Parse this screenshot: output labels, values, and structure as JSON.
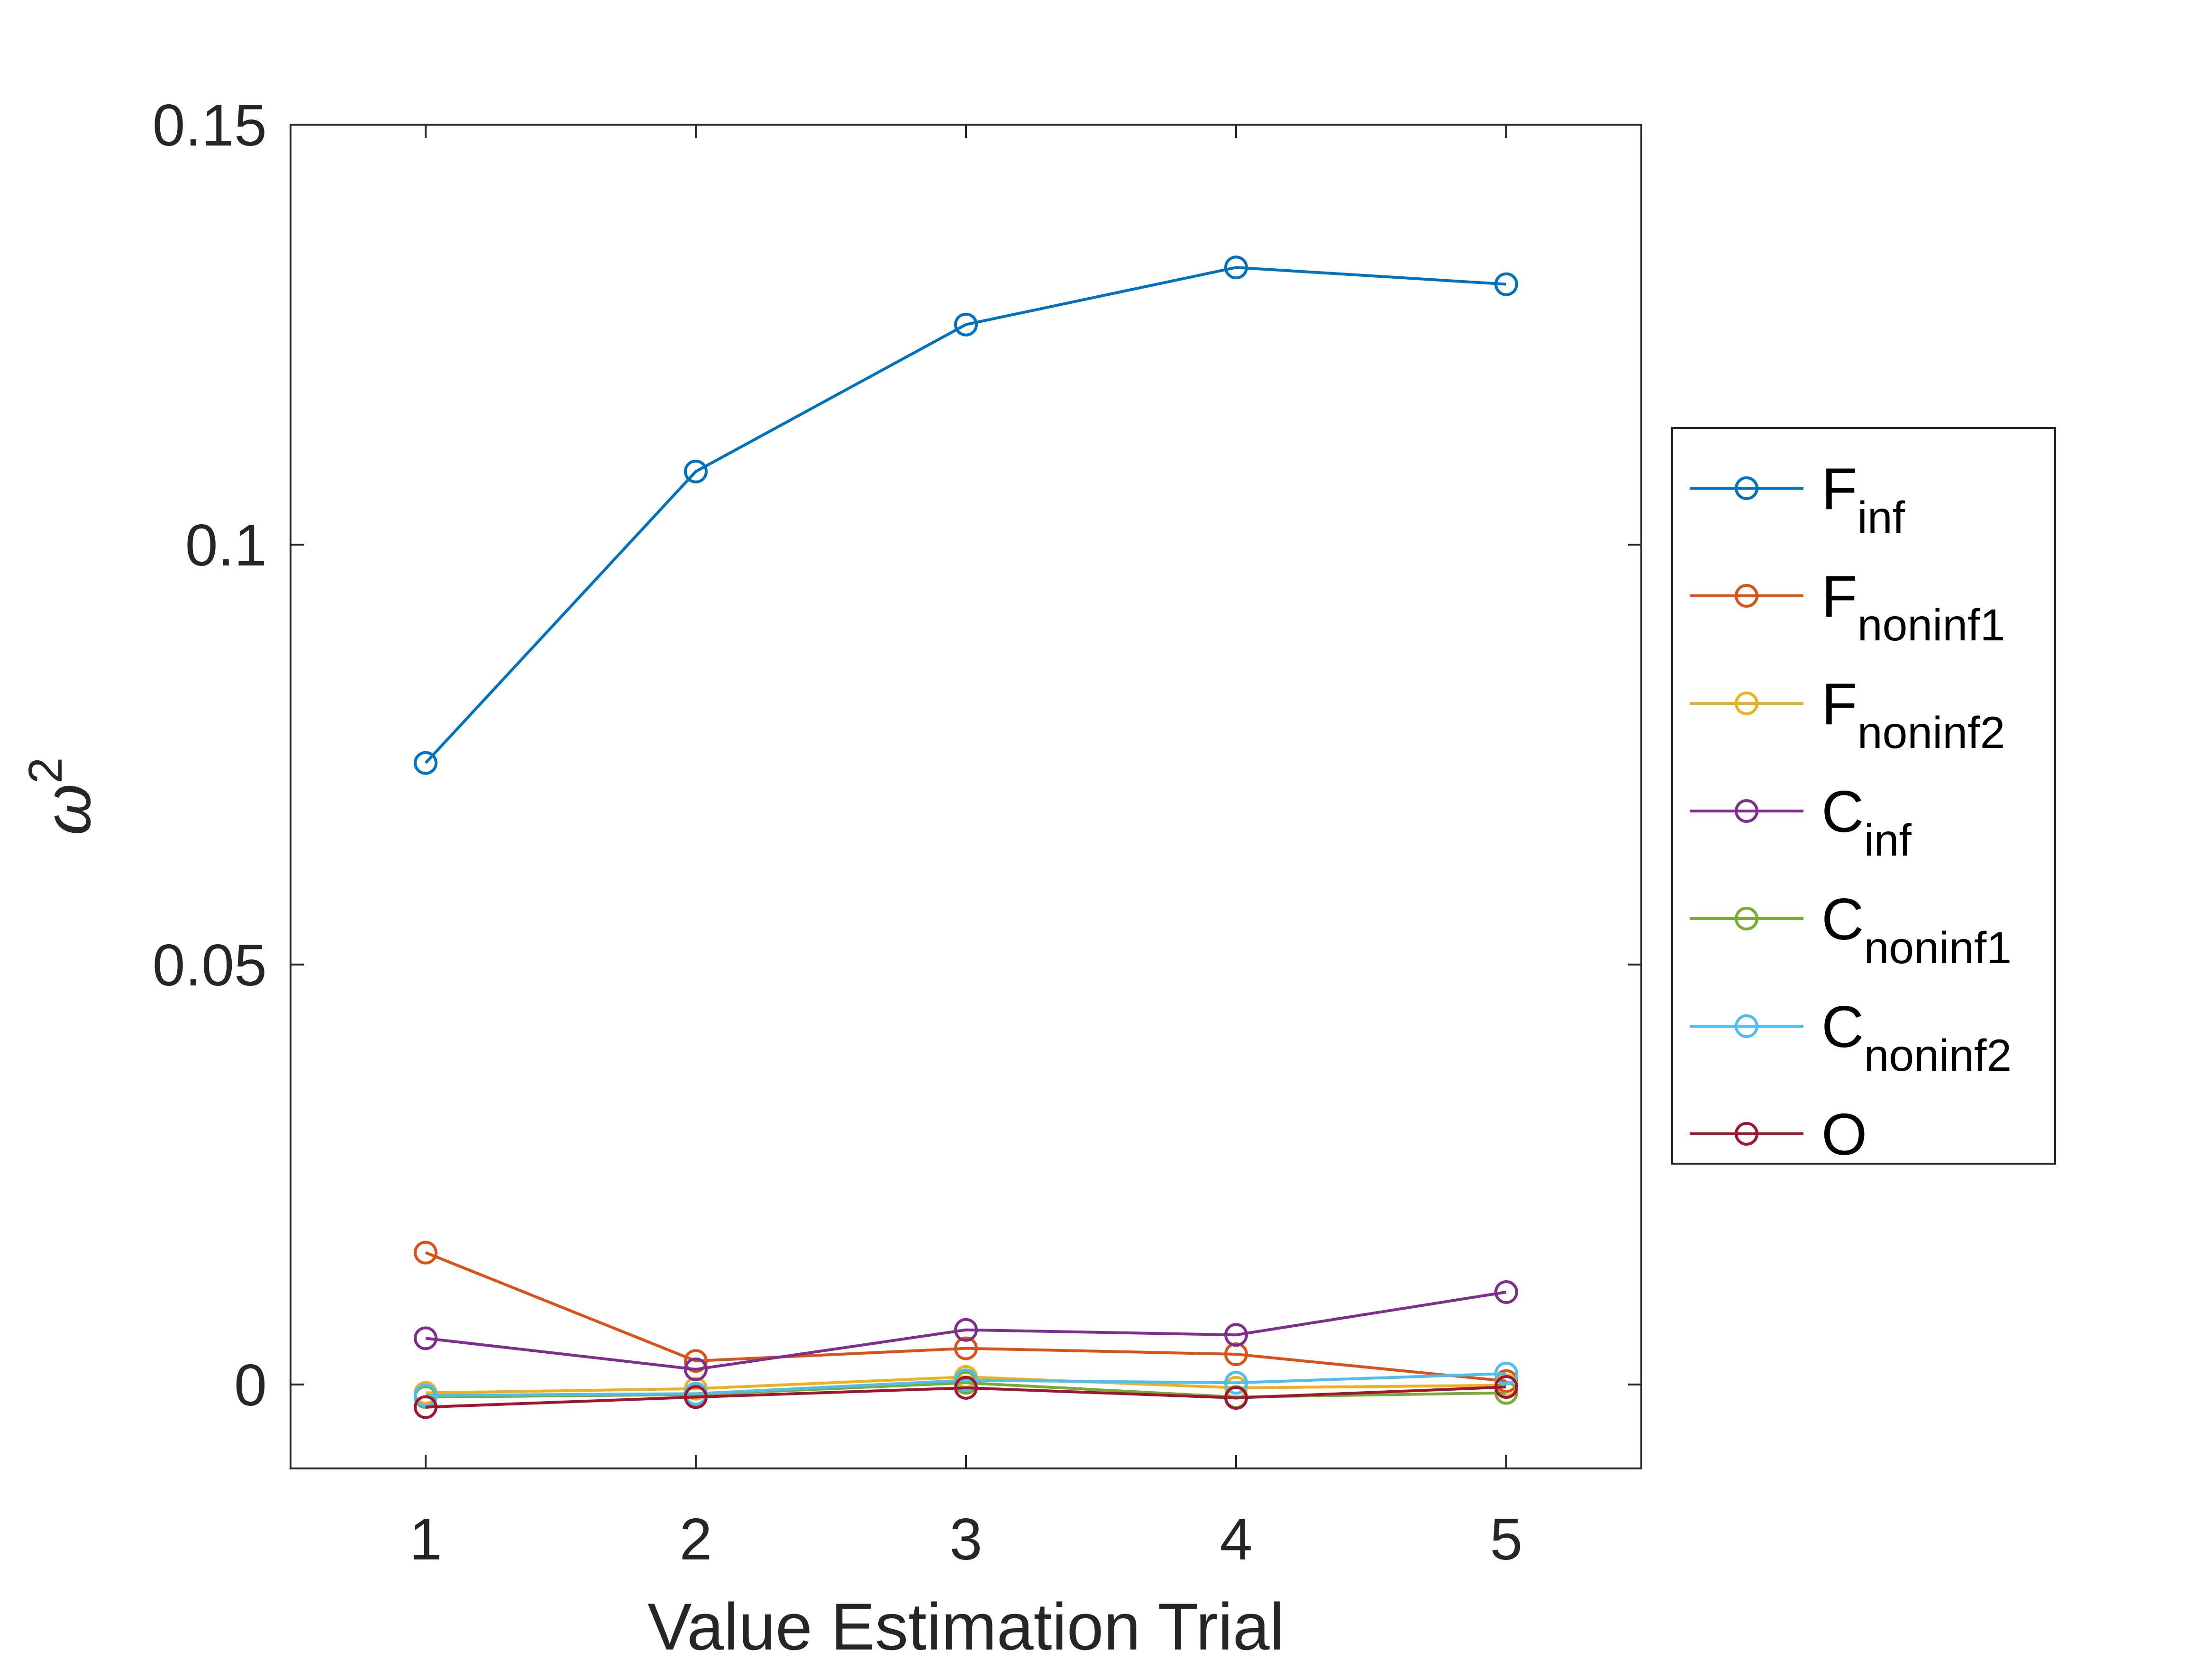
{
  "chart_data": {
    "type": "line",
    "title": "",
    "xlabel": "Value Estimation Trial",
    "ylabel": {
      "base": "ω",
      "superscript": "2"
    },
    "x": [
      1,
      2,
      3,
      4,
      5
    ],
    "xlim": [
      0.5,
      5.5
    ],
    "ylim": [
      -0.01,
      0.15
    ],
    "xticks": [
      "1",
      "2",
      "3",
      "4",
      "5"
    ],
    "yticks": [
      "0",
      "0.05",
      "0.1",
      "0.15"
    ],
    "ytick_values": [
      0,
      0.05,
      0.1,
      0.15
    ],
    "grid": false,
    "legend_position": "right",
    "marker": "circle",
    "series": [
      {
        "name": {
          "base": "F",
          "sub": "inf"
        },
        "color": "#0072BD",
        "values": [
          0.074,
          0.1087,
          0.1262,
          0.133,
          0.131
        ]
      },
      {
        "name": {
          "base": "F",
          "sub": "noninf1"
        },
        "color": "#D95319",
        "values": [
          0.0157,
          0.0028,
          0.0043,
          0.0036,
          0.0004
        ]
      },
      {
        "name": {
          "base": "F",
          "sub": "noninf2"
        },
        "color": "#EDB120",
        "values": [
          -0.001,
          -0.0005,
          0.0009,
          -0.0004,
          -0.0001
        ]
      },
      {
        "name": {
          "base": "C",
          "sub": "inf"
        },
        "color": "#7E2F8E",
        "values": [
          0.0055,
          0.0018,
          0.0065,
          0.0059,
          0.011
        ]
      },
      {
        "name": {
          "base": "C",
          "sub": "noninf1"
        },
        "color": "#77AC30",
        "values": [
          -0.0015,
          -0.0012,
          0.0002,
          -0.0015,
          -0.001
        ]
      },
      {
        "name": {
          "base": "C",
          "sub": "noninf2"
        },
        "color": "#4DBEEE",
        "values": [
          -0.0013,
          -0.0011,
          0.0005,
          0.0002,
          0.0013
        ]
      },
      {
        "name": {
          "base": "O",
          "sub": ""
        },
        "color": "#A2142F",
        "values": [
          -0.0027,
          -0.0015,
          -0.0004,
          -0.0016,
          -0.0003
        ]
      }
    ]
  }
}
